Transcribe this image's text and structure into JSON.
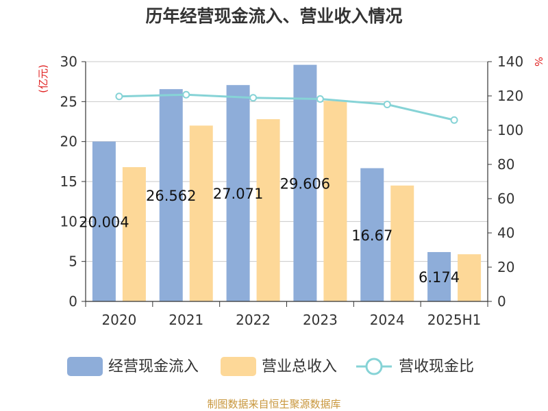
{
  "colors": {
    "cash_inflow": "#8eadd9",
    "revenue": "#fdd898",
    "ratio": "#86d3d6",
    "gridline": "#c8c8c8",
    "axis": "#333333",
    "unit_red": "#e02020",
    "source": "#c8963c"
  },
  "chart_data": {
    "type": "bar",
    "title": "历年经营现金流入、营业收入情况",
    "categories": [
      "2020",
      "2021",
      "2022",
      "2023",
      "2024",
      "2025H1"
    ],
    "left_axis": {
      "unit": "(亿元)",
      "ylim": [
        0,
        30
      ],
      "ticks": [
        "0",
        "5",
        "10",
        "15",
        "20",
        "25",
        "30"
      ]
    },
    "right_axis": {
      "unit": "%",
      "ylim": [
        0,
        140
      ],
      "ticks": [
        "0",
        "20",
        "40",
        "60",
        "80",
        "100",
        "120",
        "140"
      ]
    },
    "series": [
      {
        "name": "经营现金流入",
        "kind": "bar",
        "axis": "left",
        "values": [
          20.004,
          26.562,
          27.071,
          29.606,
          16.67,
          6.174
        ],
        "labels": [
          "20.004",
          "26.562",
          "27.071",
          "29.606",
          "16.67",
          "6.174"
        ]
      },
      {
        "name": "营业总收入",
        "kind": "bar",
        "axis": "left",
        "values": [
          16.8,
          22.0,
          22.8,
          25.1,
          14.5,
          5.9
        ]
      },
      {
        "name": "营收现金比",
        "kind": "line",
        "axis": "right",
        "values": [
          119.7,
          120.7,
          118.9,
          118.2,
          115.0,
          105.9
        ]
      }
    ],
    "grid": true,
    "legend": "bottom",
    "source": "制图数据来自恒生聚源数据库"
  }
}
